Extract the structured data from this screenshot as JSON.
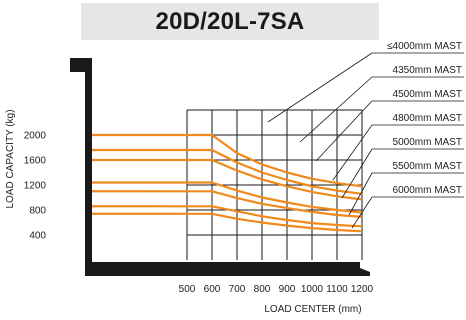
{
  "title": "20D/20L-7SA",
  "chart_data": {
    "type": "line",
    "title": "20D/20L-7SA",
    "xlabel": "LOAD CENTER (mm)",
    "ylabel": "LOAD CAPACITY (kg)",
    "x_ticks": [
      500,
      600,
      700,
      800,
      900,
      1000,
      1100,
      1200
    ],
    "x_tick_labels": [
      "500",
      "600",
      "700",
      "800",
      "900",
      "1000",
      "1100",
      "1200"
    ],
    "y_ticks": [
      400,
      800,
      1200,
      1600,
      2000
    ],
    "xlim": [
      500,
      1200
    ],
    "ylim": [
      0,
      2200
    ],
    "grid": true,
    "line_color": "#f08a1c",
    "series": [
      {
        "name": "≤4000mm MAST",
        "x": [
          500,
          600,
          700,
          800,
          900,
          1000,
          1100,
          1200
        ],
        "y": [
          2000,
          2000,
          1710,
          1530,
          1400,
          1300,
          1230,
          1180
        ]
      },
      {
        "name": "4350mm MAST",
        "x": [
          500,
          600,
          700,
          800,
          900,
          1000,
          1100,
          1200
        ],
        "y": [
          1760,
          1760,
          1560,
          1400,
          1280,
          1180,
          1110,
          1060
        ]
      },
      {
        "name": "4500mm MAST",
        "x": [
          500,
          600,
          700,
          800,
          900,
          1000,
          1100,
          1200
        ],
        "y": [
          1600,
          1600,
          1430,
          1290,
          1180,
          1090,
          1020,
          970
        ]
      },
      {
        "name": "4800mm MAST",
        "x": [
          500,
          600,
          700,
          800,
          900,
          1000,
          1100,
          1200
        ],
        "y": [
          1240,
          1240,
          1110,
          1000,
          920,
          850,
          800,
          760
        ]
      },
      {
        "name": "5000mm MAST",
        "x": [
          500,
          600,
          700,
          800,
          900,
          1000,
          1100,
          1200
        ],
        "y": [
          1100,
          1100,
          990,
          900,
          830,
          770,
          720,
          690
        ]
      },
      {
        "name": "5500mm MAST",
        "x": [
          500,
          600,
          700,
          800,
          900,
          1000,
          1100,
          1200
        ],
        "y": [
          860,
          860,
          780,
          700,
          640,
          590,
          560,
          540
        ]
      },
      {
        "name": "6000mm MAST",
        "x": [
          500,
          600,
          700,
          800,
          900,
          1000,
          1100,
          1200
        ],
        "y": [
          740,
          740,
          660,
          600,
          550,
          510,
          480,
          460
        ]
      }
    ]
  }
}
